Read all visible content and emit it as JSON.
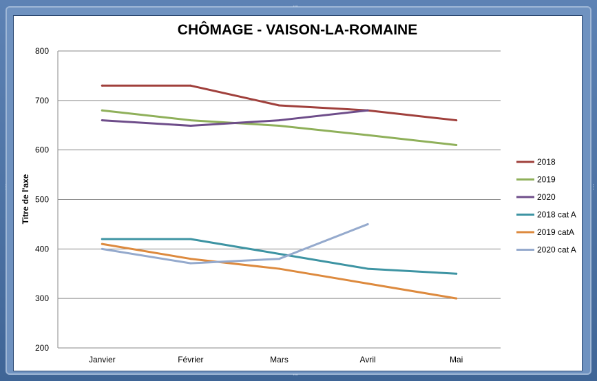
{
  "chart_data": {
    "type": "line",
    "title": "CHÔMAGE - VAISON-LA-ROMAINE",
    "xlabel": "",
    "ylabel": "Titre de l'axe",
    "categories": [
      "Janvier",
      "Février",
      "Mars",
      "Avril",
      "Mai"
    ],
    "ylim": [
      200,
      800
    ],
    "yticks": [
      200,
      300,
      400,
      500,
      600,
      700,
      800
    ],
    "grid": true,
    "legend_position": "right",
    "series": [
      {
        "name": "2018",
        "color": "#a0403c",
        "values": [
          730,
          730,
          690,
          680,
          660
        ]
      },
      {
        "name": "2019",
        "color": "#8fb05a",
        "values": [
          680,
          660,
          649,
          630,
          610
        ]
      },
      {
        "name": "2020",
        "color": "#6e4d8a",
        "values": [
          660,
          649,
          660,
          680,
          null
        ]
      },
      {
        "name": "2018 cat A",
        "color": "#3e94a3",
        "values": [
          420,
          420,
          390,
          360,
          350
        ]
      },
      {
        "name": "2019 catA",
        "color": "#dd8a3e",
        "values": [
          410,
          380,
          360,
          330,
          300
        ]
      },
      {
        "name": "2020 cat A",
        "color": "#95aacd",
        "values": [
          400,
          371,
          380,
          450,
          null
        ]
      }
    ]
  }
}
